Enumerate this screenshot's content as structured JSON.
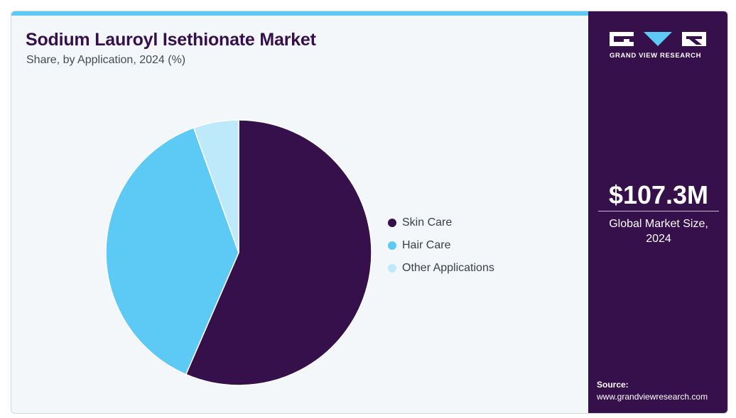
{
  "header": {
    "title": "Sodium Lauroyl Isethionate Market",
    "subtitle": "Share, by Application, 2024 (%)"
  },
  "chart_data": {
    "type": "pie",
    "title": "Sodium Lauroyl Isethionate Market",
    "subtitle": "Share, by Application, 2024 (%)",
    "categories": [
      "Skin Care",
      "Hair Care",
      "Other Applications"
    ],
    "values": [
      56.5,
      38.0,
      5.5
    ],
    "colors": [
      "#36104a",
      "#5dc9f5",
      "#bde9fa"
    ],
    "start_angle": "12 o'clock",
    "direction": "clockwise",
    "legend_position": "right"
  },
  "sidebar": {
    "brand": "GRAND VIEW RESEARCH",
    "market_size": "$107.3M",
    "market_size_label": "Global Market Size, 2024",
    "source_heading": "Source:",
    "source_url": "www.grandviewresearch.com",
    "colors": {
      "background": "#36104a",
      "logo_accent": "#5dc9f5"
    }
  }
}
